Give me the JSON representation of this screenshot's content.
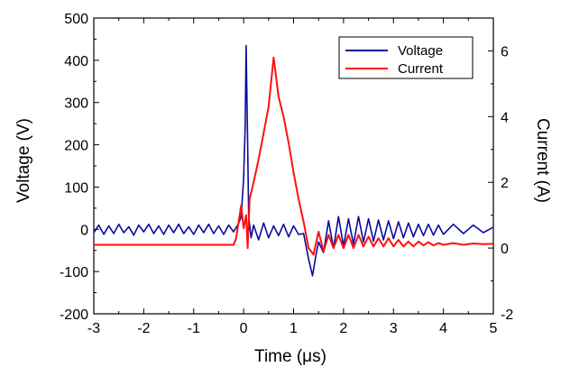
{
  "chart_data": {
    "type": "line",
    "xlabel": "Time (μs)",
    "ylabel": "Voltage (V)",
    "y2label": "Current (A)",
    "xlim": [
      -3,
      5
    ],
    "ylim": [
      -200,
      500
    ],
    "y2lim": [
      -2,
      7
    ],
    "x_ticks": [
      "-3",
      "-2",
      "-1",
      "0",
      "1",
      "2",
      "3",
      "4",
      "5"
    ],
    "y_ticks": [
      "-200",
      "-100",
      "0",
      "100",
      "200",
      "300",
      "400",
      "500"
    ],
    "y2_ticks": [
      "-2",
      "0",
      "2",
      "4",
      "6"
    ],
    "legend": {
      "position": "top-right",
      "entries": [
        "Voltage",
        "Current"
      ]
    },
    "grid": false,
    "series": [
      {
        "name": "Voltage",
        "axis": "left",
        "color": "#0a0a9e",
        "points": [
          [
            -3.0,
            -8
          ],
          [
            -2.9,
            10
          ],
          [
            -2.8,
            -12
          ],
          [
            -2.7,
            8
          ],
          [
            -2.6,
            -10
          ],
          [
            -2.5,
            12
          ],
          [
            -2.4,
            -8
          ],
          [
            -2.3,
            6
          ],
          [
            -2.2,
            -14
          ],
          [
            -2.1,
            10
          ],
          [
            -2.0,
            -6
          ],
          [
            -1.9,
            12
          ],
          [
            -1.8,
            -10
          ],
          [
            -1.7,
            8
          ],
          [
            -1.6,
            -12
          ],
          [
            -1.5,
            10
          ],
          [
            -1.4,
            -8
          ],
          [
            -1.3,
            12
          ],
          [
            -1.2,
            -10
          ],
          [
            -1.1,
            6
          ],
          [
            -1.0,
            -12
          ],
          [
            -0.9,
            10
          ],
          [
            -0.8,
            -8
          ],
          [
            -0.7,
            12
          ],
          [
            -0.6,
            -10
          ],
          [
            -0.5,
            8
          ],
          [
            -0.4,
            -12
          ],
          [
            -0.3,
            10
          ],
          [
            -0.2,
            -6
          ],
          [
            -0.1,
            14
          ],
          [
            -0.05,
            30
          ],
          [
            0.0,
            120
          ],
          [
            0.03,
            240
          ],
          [
            0.05,
            435
          ],
          [
            0.08,
            200
          ],
          [
            0.1,
            30
          ],
          [
            0.15,
            -20
          ],
          [
            0.2,
            10
          ],
          [
            0.3,
            -25
          ],
          [
            0.4,
            15
          ],
          [
            0.5,
            -20
          ],
          [
            0.6,
            8
          ],
          [
            0.7,
            -15
          ],
          [
            0.8,
            12
          ],
          [
            0.9,
            -18
          ],
          [
            1.0,
            8
          ],
          [
            1.1,
            -12
          ],
          [
            1.2,
            -10
          ],
          [
            1.3,
            -70
          ],
          [
            1.38,
            -110
          ],
          [
            1.45,
            -60
          ],
          [
            1.5,
            -30
          ],
          [
            1.6,
            -55
          ],
          [
            1.7,
            20
          ],
          [
            1.8,
            -45
          ],
          [
            1.9,
            30
          ],
          [
            2.0,
            -40
          ],
          [
            2.1,
            25
          ],
          [
            2.2,
            -35
          ],
          [
            2.3,
            30
          ],
          [
            2.4,
            -30
          ],
          [
            2.5,
            25
          ],
          [
            2.6,
            -28
          ],
          [
            2.7,
            22
          ],
          [
            2.8,
            -25
          ],
          [
            2.9,
            20
          ],
          [
            3.0,
            -22
          ],
          [
            3.1,
            18
          ],
          [
            3.2,
            -20
          ],
          [
            3.3,
            15
          ],
          [
            3.4,
            -18
          ],
          [
            3.5,
            12
          ],
          [
            3.6,
            -15
          ],
          [
            3.7,
            12
          ],
          [
            3.8,
            -14
          ],
          [
            3.9,
            10
          ],
          [
            4.0,
            -12
          ],
          [
            4.2,
            12
          ],
          [
            4.4,
            -10
          ],
          [
            4.6,
            10
          ],
          [
            4.8,
            -8
          ],
          [
            5.0,
            5
          ]
        ]
      },
      {
        "name": "Current",
        "axis": "right",
        "color": "#ff1010",
        "points": [
          [
            -3.0,
            0.1
          ],
          [
            -0.2,
            0.1
          ],
          [
            -0.15,
            0.3
          ],
          [
            -0.1,
            0.8
          ],
          [
            -0.05,
            1.3
          ],
          [
            0.0,
            0.6
          ],
          [
            0.05,
            1.0
          ],
          [
            0.08,
            0.0
          ],
          [
            0.12,
            1.5
          ],
          [
            0.2,
            2.0
          ],
          [
            0.3,
            2.7
          ],
          [
            0.4,
            3.5
          ],
          [
            0.5,
            4.3
          ],
          [
            0.6,
            5.8
          ],
          [
            0.7,
            4.6
          ],
          [
            0.8,
            4.0
          ],
          [
            0.9,
            3.2
          ],
          [
            1.0,
            2.3
          ],
          [
            1.1,
            1.5
          ],
          [
            1.2,
            0.8
          ],
          [
            1.3,
            0.0
          ],
          [
            1.4,
            -0.2
          ],
          [
            1.5,
            0.5
          ],
          [
            1.6,
            -0.1
          ],
          [
            1.7,
            0.4
          ],
          [
            1.8,
            0.0
          ],
          [
            1.9,
            0.4
          ],
          [
            2.0,
            0.0
          ],
          [
            2.1,
            0.4
          ],
          [
            2.2,
            0.0
          ],
          [
            2.3,
            0.4
          ],
          [
            2.4,
            0.05
          ],
          [
            2.5,
            0.35
          ],
          [
            2.6,
            0.05
          ],
          [
            2.7,
            0.3
          ],
          [
            2.8,
            0.05
          ],
          [
            2.9,
            0.3
          ],
          [
            3.0,
            0.05
          ],
          [
            3.1,
            0.25
          ],
          [
            3.2,
            0.05
          ],
          [
            3.3,
            0.2
          ],
          [
            3.4,
            0.05
          ],
          [
            3.5,
            0.2
          ],
          [
            3.6,
            0.08
          ],
          [
            3.7,
            0.18
          ],
          [
            3.8,
            0.08
          ],
          [
            3.9,
            0.15
          ],
          [
            4.0,
            0.1
          ],
          [
            4.2,
            0.15
          ],
          [
            4.4,
            0.1
          ],
          [
            4.6,
            0.14
          ],
          [
            4.8,
            0.12
          ],
          [
            5.0,
            0.13
          ]
        ]
      }
    ]
  }
}
